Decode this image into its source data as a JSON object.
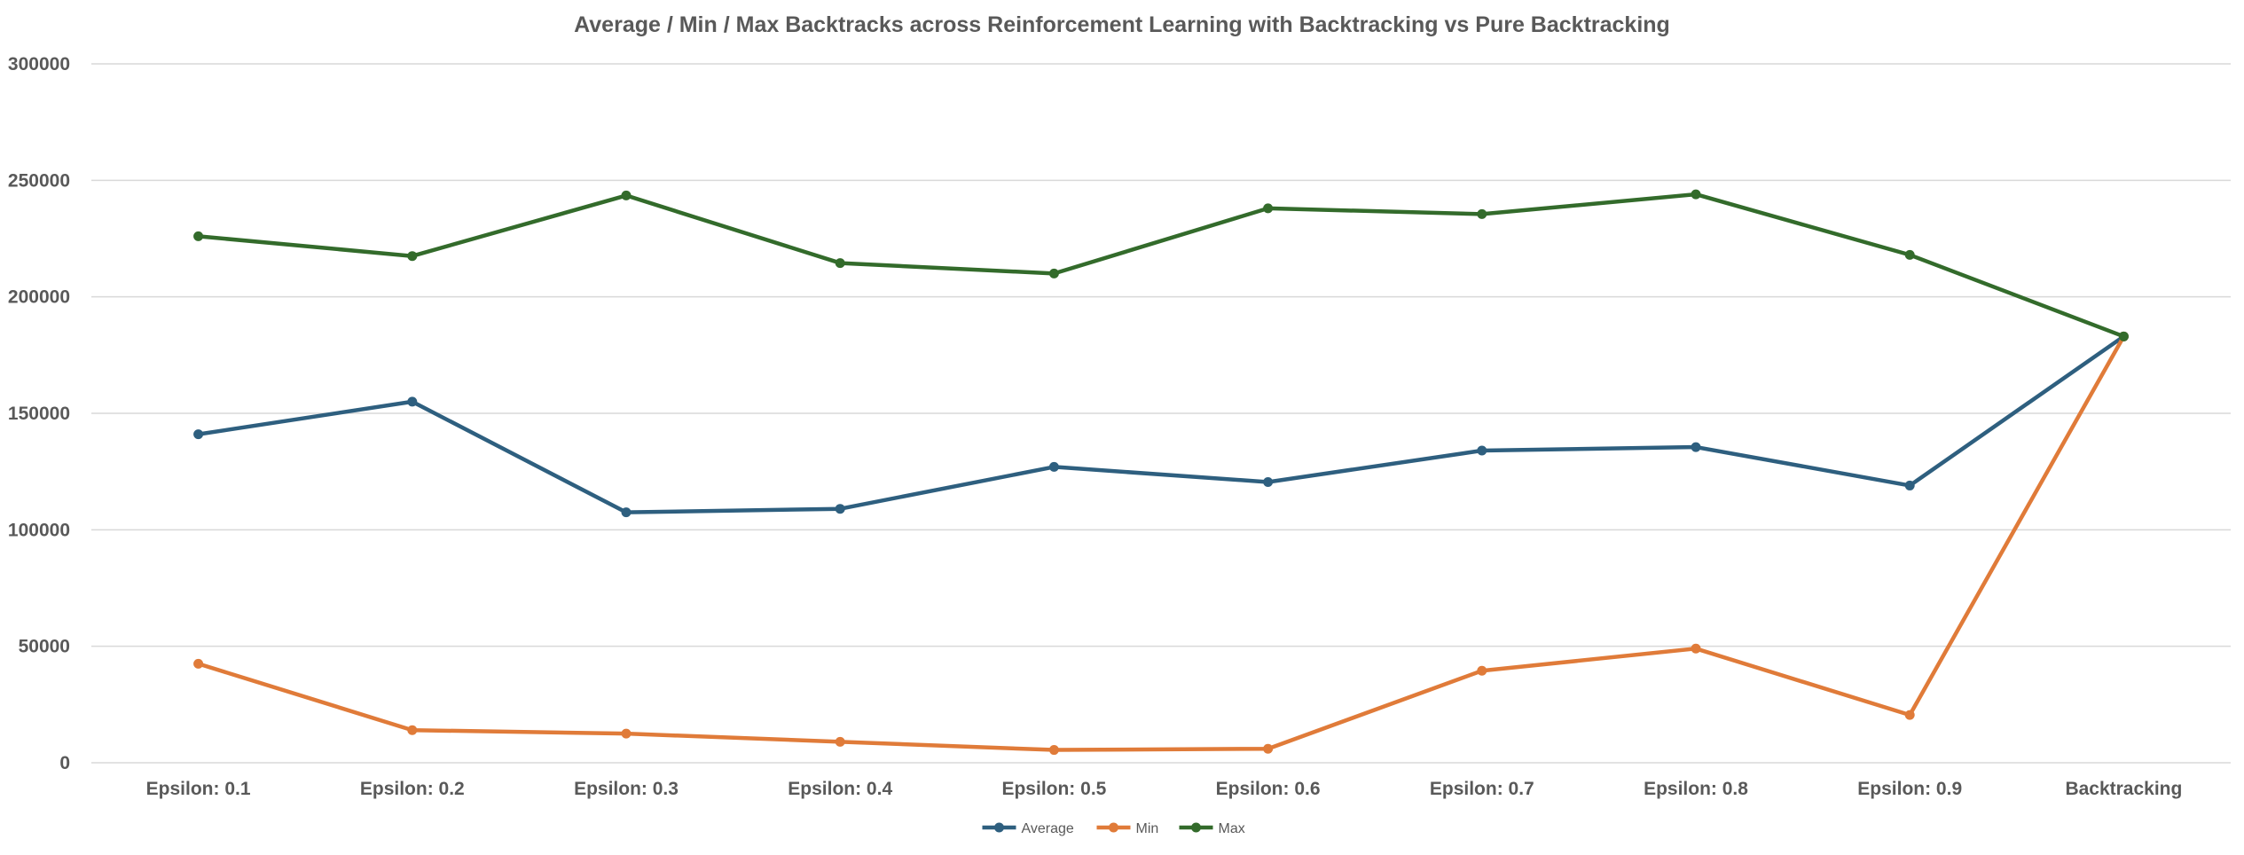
{
  "chart_data": {
    "type": "line",
    "title": "Average / Min / Max Backtracks across Reinforcement Learning with Backtracking vs Pure Backtracking",
    "xlabel": "",
    "ylabel": "",
    "categories": [
      "Epsilon: 0.1",
      "Epsilon: 0.2",
      "Epsilon: 0.3",
      "Epsilon: 0.4",
      "Epsilon: 0.5",
      "Epsilon: 0.6",
      "Epsilon: 0.7",
      "Epsilon: 0.8",
      "Epsilon: 0.9",
      "Backtracking"
    ],
    "ylim": [
      0,
      300000
    ],
    "yticks": [
      0,
      50000,
      100000,
      150000,
      200000,
      250000,
      300000
    ],
    "ytick_labels": [
      "0",
      "50000",
      "100000",
      "150000",
      "200000",
      "250000",
      "300000"
    ],
    "grid": true,
    "legend_position": "bottom",
    "series": [
      {
        "name": "Average",
        "color": "#2e5f7f",
        "values": [
          141000,
          155000,
          107500,
          109000,
          127000,
          120500,
          134000,
          135500,
          119000,
          183000
        ]
      },
      {
        "name": "Min",
        "color": "#e07b39",
        "values": [
          42500,
          14000,
          12500,
          9000,
          5500,
          6000,
          39500,
          49000,
          20500,
          183000
        ]
      },
      {
        "name": "Max",
        "color": "#336b2b",
        "values": [
          226000,
          217500,
          243500,
          214500,
          210000,
          238000,
          235500,
          244000,
          218000,
          183000
        ]
      }
    ]
  }
}
